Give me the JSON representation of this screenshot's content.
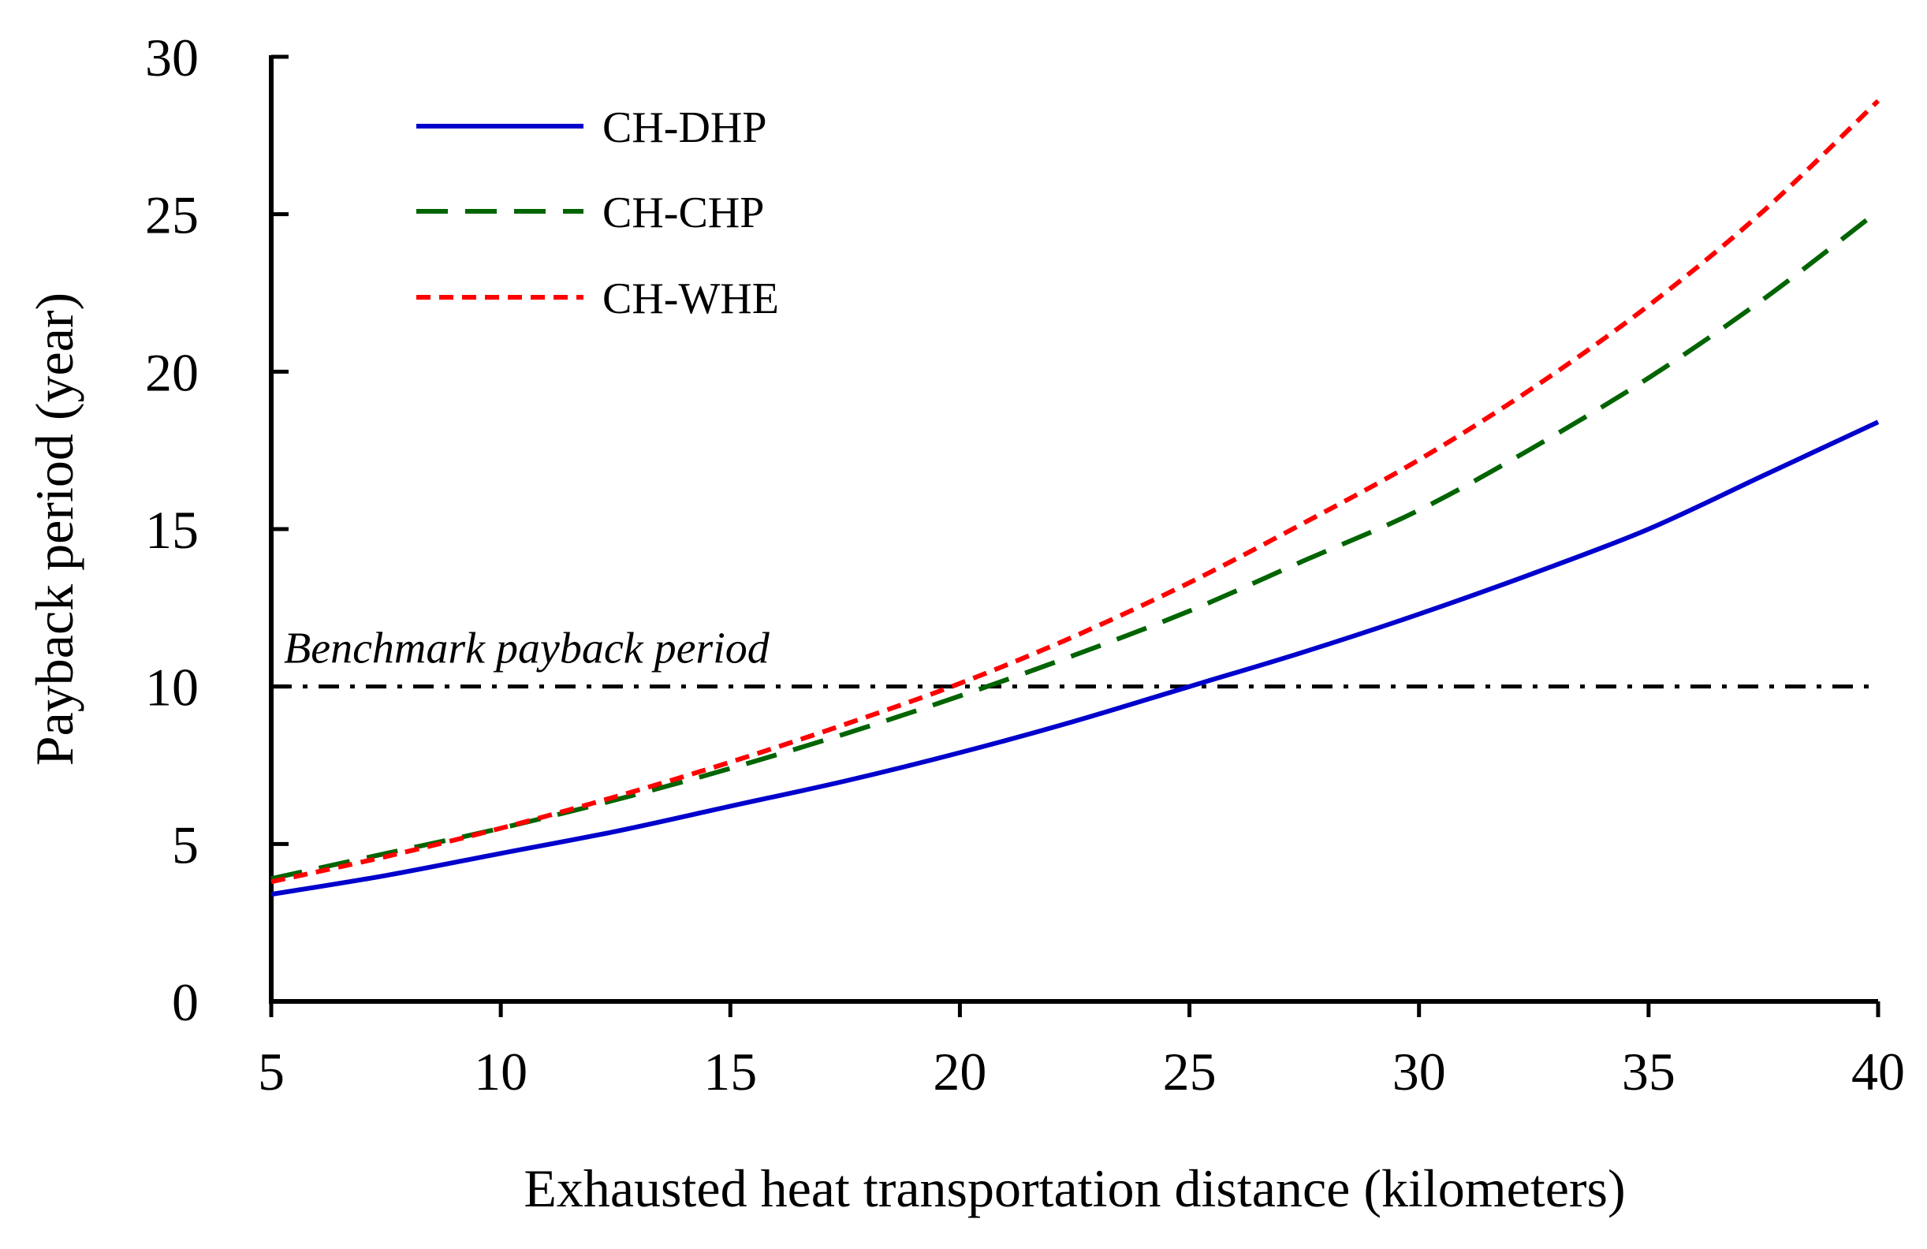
{
  "chart_data": {
    "type": "line",
    "title": "",
    "xlabel": "Exhausted heat transportation distance (kilometers)",
    "ylabel": "Payback period (year)",
    "xlim": [
      5,
      40
    ],
    "ylim": [
      0,
      30
    ],
    "xticks": [
      5,
      10,
      15,
      20,
      25,
      30,
      35,
      40
    ],
    "yticks": [
      0,
      5,
      10,
      15,
      20,
      25,
      30
    ],
    "grid": false,
    "legend_position": "top-left",
    "x": [
      5,
      7.5,
      10,
      12.5,
      15,
      17.5,
      20,
      22.5,
      25,
      27.5,
      30,
      32.5,
      35,
      37.5,
      40
    ],
    "series": [
      {
        "name": "CH-DHP",
        "color": "#0000cc",
        "style": "solid",
        "values": [
          3.4,
          4.0,
          4.7,
          5.4,
          6.2,
          7.0,
          7.9,
          8.9,
          10.0,
          11.1,
          12.3,
          13.6,
          15.0,
          16.7,
          18.4
        ]
      },
      {
        "name": "CH-CHP",
        "color": "#006400",
        "style": "dashed",
        "values": [
          3.9,
          4.7,
          5.5,
          6.4,
          7.4,
          8.5,
          9.7,
          11.0,
          12.4,
          14.0,
          15.6,
          17.6,
          19.8,
          22.3,
          25.1
        ]
      },
      {
        "name": "CH-WHE",
        "color": "#ff0000",
        "style": "dotted",
        "values": [
          3.8,
          4.6,
          5.5,
          6.5,
          7.6,
          8.8,
          10.1,
          11.6,
          13.3,
          15.2,
          17.2,
          19.5,
          22.1,
          25.1,
          28.6
        ]
      }
    ],
    "reference_line": {
      "label": "Benchmark payback period",
      "y": 10,
      "color": "#000000",
      "style": "dash-dot"
    }
  }
}
